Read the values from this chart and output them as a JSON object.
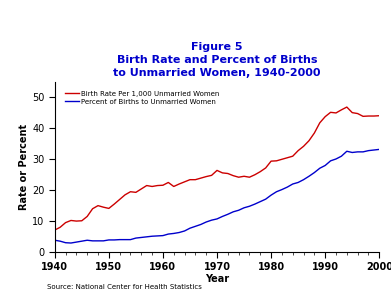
{
  "title_line1": "Figure 5",
  "title_line2": "Birth Rate and Percent of Births",
  "title_line3": "to Unmarried Women, 1940-2000",
  "title_color": "#0000cc",
  "xlabel": "Year",
  "ylabel": "Rate or Percent",
  "source": "Source: National Center for Health Statistics",
  "ylim": [
    0,
    55
  ],
  "yticks": [
    0,
    10,
    20,
    30,
    40,
    50
  ],
  "xlim": [
    1940,
    2000
  ],
  "xticks": [
    1940,
    1950,
    1960,
    1970,
    1980,
    1990,
    2000
  ],
  "legend_red": "Birth Rate Per 1,000 Unmarried Women",
  "legend_blue": "Percent of Births to Unmarried Women",
  "red_color": "#cc0000",
  "blue_color": "#0000cc",
  "red_x": [
    1940,
    1941,
    1942,
    1943,
    1944,
    1945,
    1946,
    1947,
    1948,
    1949,
    1950,
    1951,
    1952,
    1953,
    1954,
    1955,
    1956,
    1957,
    1958,
    1959,
    1960,
    1961,
    1962,
    1963,
    1964,
    1965,
    1966,
    1967,
    1968,
    1969,
    1970,
    1971,
    1972,
    1973,
    1974,
    1975,
    1976,
    1977,
    1978,
    1979,
    1980,
    1981,
    1982,
    1983,
    1984,
    1985,
    1986,
    1987,
    1988,
    1989,
    1990,
    1991,
    1992,
    1993,
    1994,
    1995,
    1996,
    1997,
    1998,
    1999,
    2000
  ],
  "red_y": [
    7.1,
    8.0,
    9.5,
    10.2,
    10.0,
    10.1,
    11.5,
    14.0,
    15.0,
    14.5,
    14.1,
    15.5,
    17.0,
    18.5,
    19.5,
    19.3,
    20.4,
    21.5,
    21.2,
    21.5,
    21.6,
    22.5,
    21.2,
    22.0,
    22.7,
    23.4,
    23.4,
    23.9,
    24.4,
    24.8,
    26.4,
    25.6,
    25.4,
    24.7,
    24.2,
    24.5,
    24.2,
    25.0,
    26.0,
    27.2,
    29.4,
    29.5,
    30.0,
    30.5,
    31.0,
    32.8,
    34.2,
    36.0,
    38.5,
    41.8,
    43.8,
    45.2,
    45.0,
    46.0,
    46.9,
    45.1,
    44.8,
    43.9,
    44.0,
    44.0,
    44.1
  ],
  "blue_x": [
    1940,
    1941,
    1942,
    1943,
    1944,
    1945,
    1946,
    1947,
    1948,
    1949,
    1950,
    1951,
    1952,
    1953,
    1954,
    1955,
    1956,
    1957,
    1958,
    1959,
    1960,
    1961,
    1962,
    1963,
    1964,
    1965,
    1966,
    1967,
    1968,
    1969,
    1970,
    1971,
    1972,
    1973,
    1974,
    1975,
    1976,
    1977,
    1978,
    1979,
    1980,
    1981,
    1982,
    1983,
    1984,
    1985,
    1986,
    1987,
    1988,
    1989,
    1990,
    1991,
    1992,
    1993,
    1994,
    1995,
    1996,
    1997,
    1998,
    1999,
    2000
  ],
  "blue_y": [
    3.8,
    3.5,
    3.0,
    2.9,
    3.2,
    3.5,
    3.8,
    3.6,
    3.6,
    3.6,
    3.9,
    3.9,
    4.0,
    4.0,
    4.0,
    4.5,
    4.7,
    4.9,
    5.1,
    5.2,
    5.3,
    5.8,
    6.0,
    6.3,
    6.8,
    7.7,
    8.3,
    8.9,
    9.7,
    10.3,
    10.7,
    11.5,
    12.2,
    13.0,
    13.5,
    14.3,
    14.8,
    15.5,
    16.3,
    17.1,
    18.4,
    19.5,
    20.2,
    21.0,
    22.0,
    22.5,
    23.4,
    24.5,
    25.7,
    27.1,
    28.0,
    29.5,
    30.1,
    31.0,
    32.6,
    32.2,
    32.4,
    32.4,
    32.8,
    33.0,
    33.2
  ]
}
